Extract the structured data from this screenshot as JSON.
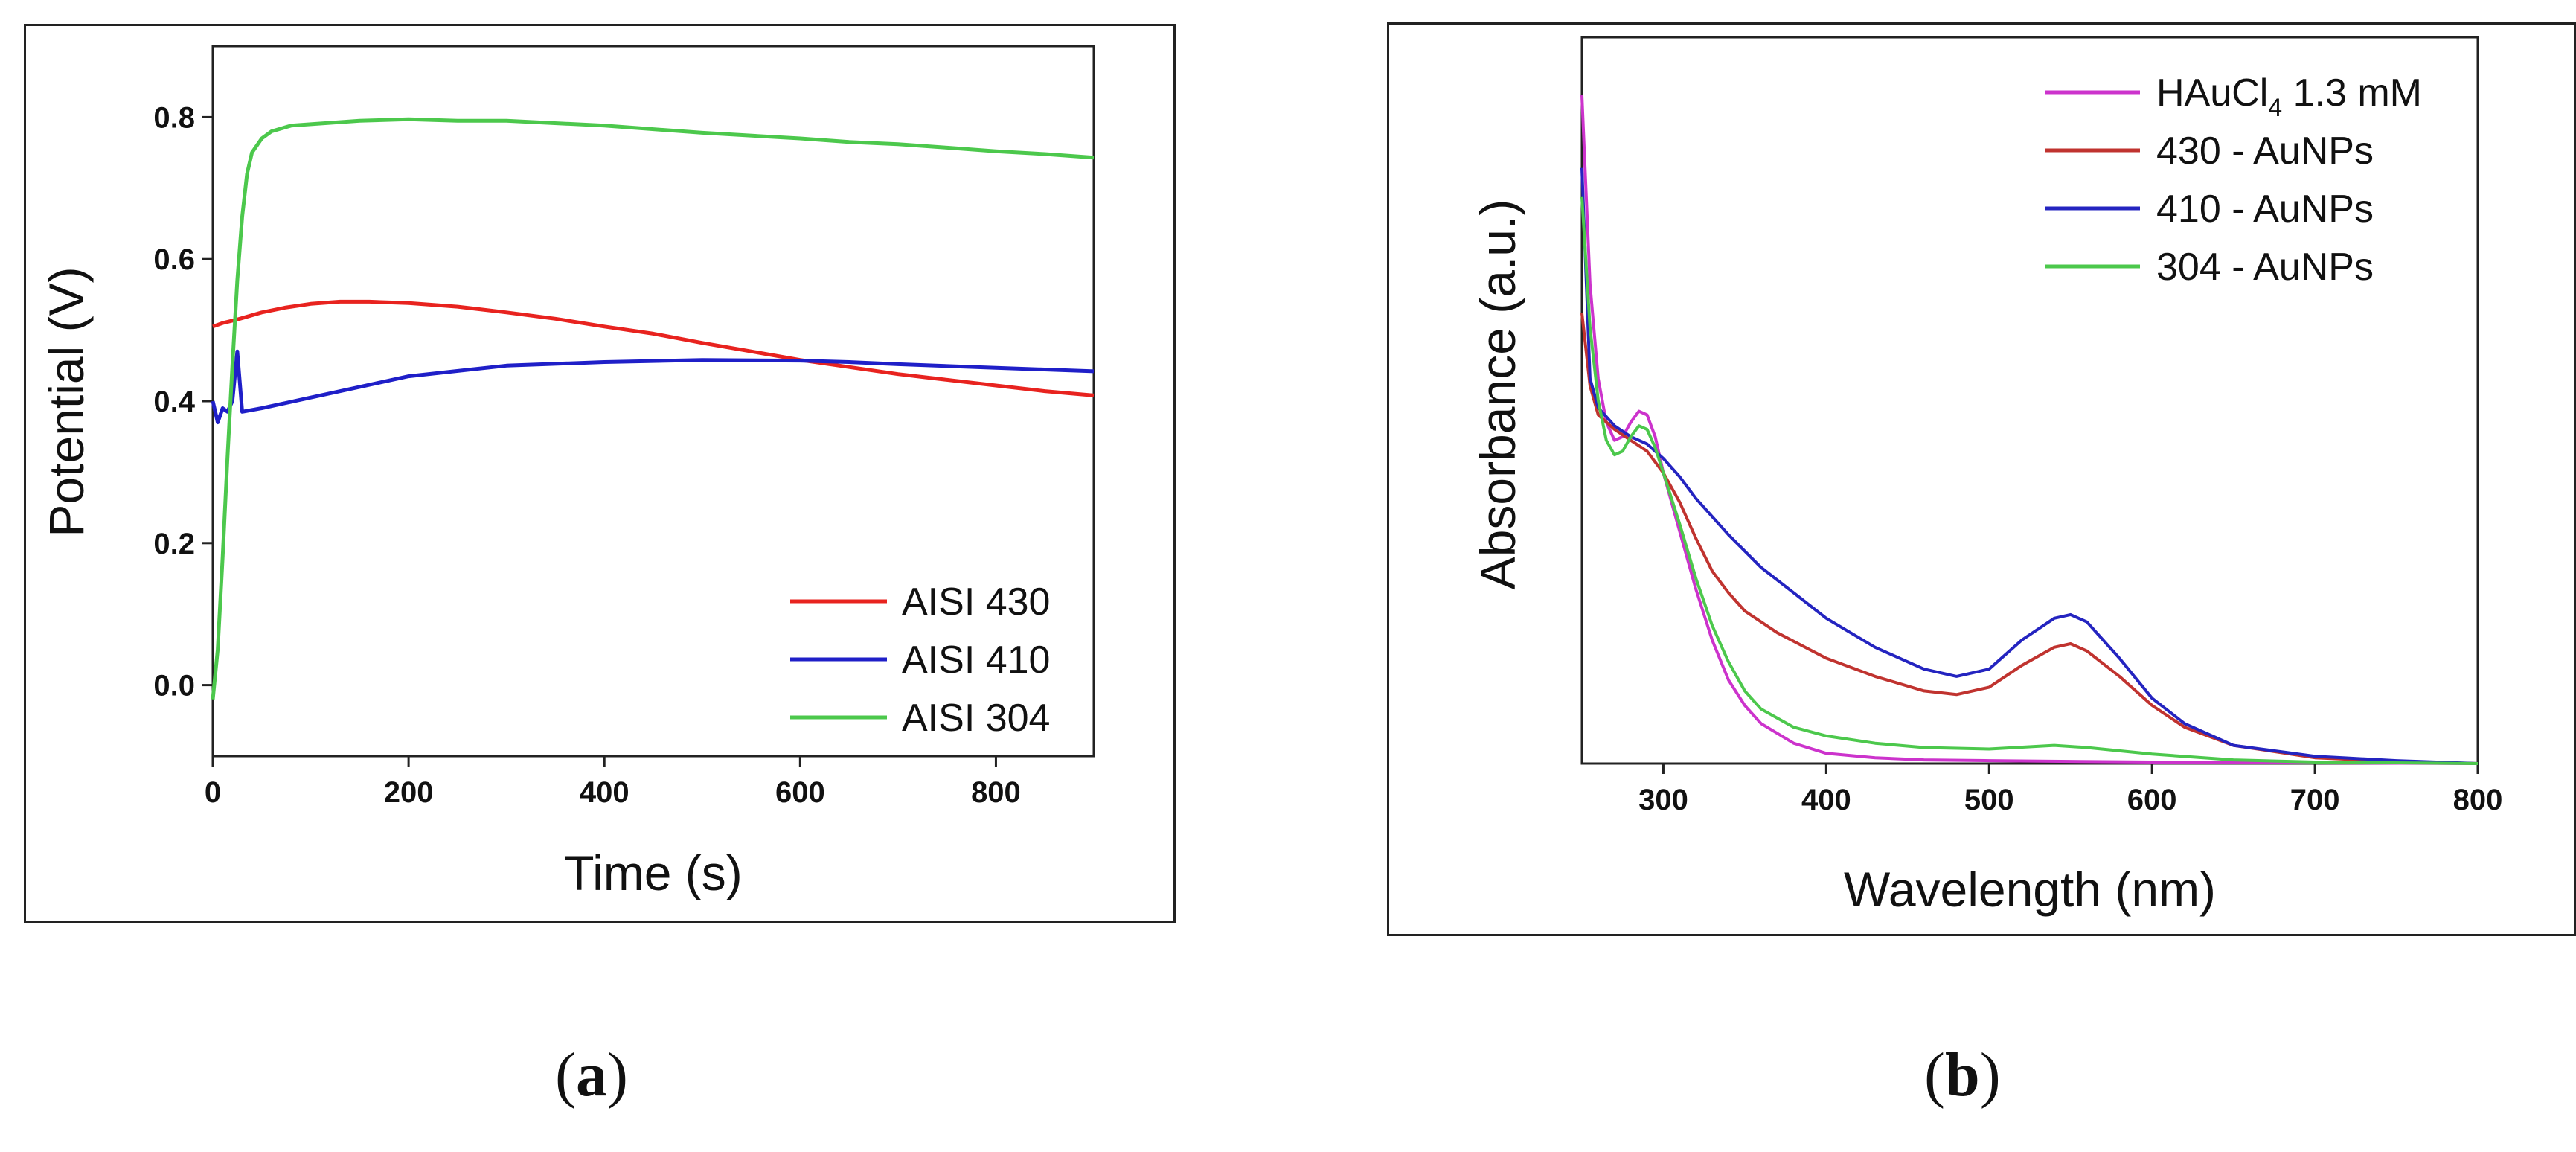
{
  "chart_data": [
    {
      "type": "line",
      "panel_label": "a",
      "xlabel": "Time (s)",
      "ylabel": "Potential (V)",
      "xlim": [
        0,
        900
      ],
      "ylim": [
        -0.1,
        0.9
      ],
      "xticks": [
        0,
        200,
        400,
        600,
        800
      ],
      "xtick_labels": [
        "0",
        "200",
        "400",
        "600",
        "800"
      ],
      "yticks": [
        0.0,
        0.2,
        0.4,
        0.6,
        0.8
      ],
      "ytick_labels": [
        "0.0",
        "0.2",
        "0.4",
        "0.6",
        "0.8"
      ],
      "legend_position": "bottom-right",
      "series": [
        {
          "name": "AISI 430",
          "color": "#e8231f",
          "x": [
            0,
            10,
            25,
            50,
            75,
            100,
            130,
            160,
            200,
            250,
            300,
            350,
            400,
            450,
            500,
            550,
            600,
            650,
            700,
            750,
            800,
            850,
            900
          ],
          "y": [
            0.505,
            0.51,
            0.515,
            0.525,
            0.532,
            0.537,
            0.54,
            0.54,
            0.538,
            0.533,
            0.525,
            0.516,
            0.505,
            0.495,
            0.482,
            0.47,
            0.458,
            0.448,
            0.438,
            0.43,
            0.422,
            0.414,
            0.408
          ]
        },
        {
          "name": "AISI 410",
          "color": "#1f1fc8",
          "x": [
            0,
            5,
            10,
            15,
            20,
            25,
            30,
            50,
            100,
            150,
            200,
            300,
            400,
            500,
            600,
            650,
            700,
            800,
            900
          ],
          "y": [
            0.4,
            0.37,
            0.39,
            0.385,
            0.4,
            0.47,
            0.385,
            0.39,
            0.405,
            0.42,
            0.435,
            0.45,
            0.455,
            0.458,
            0.457,
            0.455,
            0.452,
            0.447,
            0.442
          ]
        },
        {
          "name": "AISI 304",
          "color": "#4cc84c",
          "x": [
            0,
            5,
            10,
            15,
            20,
            25,
            30,
            35,
            40,
            50,
            60,
            80,
            100,
            150,
            200,
            250,
            300,
            400,
            500,
            600,
            650,
            700,
            750,
            800,
            850,
            900
          ],
          "y": [
            -0.02,
            0.05,
            0.18,
            0.32,
            0.45,
            0.57,
            0.66,
            0.72,
            0.75,
            0.77,
            0.78,
            0.788,
            0.79,
            0.795,
            0.797,
            0.795,
            0.795,
            0.788,
            0.778,
            0.77,
            0.765,
            0.762,
            0.757,
            0.752,
            0.748,
            0.743
          ]
        }
      ]
    },
    {
      "type": "line",
      "panel_label": "b",
      "xlabel": "Wavelength (nm)",
      "ylabel": "Absorbance (a.u.)",
      "xlim": [
        250,
        800
      ],
      "ylim": [
        0,
        1
      ],
      "xticks": [
        300,
        400,
        500,
        600,
        700,
        800
      ],
      "xtick_labels": [
        "300",
        "400",
        "500",
        "600",
        "700",
        "800"
      ],
      "yticks": [],
      "legend_position": "top-right",
      "legend_hauCl4_parts": {
        "main": "HAuCl",
        "sub": "4",
        "rest": " 1.3 mM"
      },
      "series": [
        {
          "name": "HAuCl4 1.3 mM",
          "color": "#cc33cc",
          "x": [
            250,
            255,
            260,
            265,
            270,
            275,
            280,
            285,
            290,
            295,
            300,
            310,
            320,
            330,
            340,
            350,
            360,
            380,
            400,
            430,
            460,
            500,
            550,
            600,
            700,
            800
          ],
          "y": [
            0.92,
            0.66,
            0.53,
            0.47,
            0.445,
            0.45,
            0.47,
            0.485,
            0.48,
            0.45,
            0.4,
            0.32,
            0.24,
            0.17,
            0.115,
            0.08,
            0.055,
            0.028,
            0.014,
            0.008,
            0.005,
            0.004,
            0.003,
            0.002,
            0.001,
            0.0
          ]
        },
        {
          "name": "430 - AuNPs",
          "color": "#c0332f",
          "x": [
            250,
            255,
            260,
            270,
            280,
            290,
            300,
            310,
            320,
            330,
            340,
            350,
            370,
            400,
            430,
            460,
            480,
            500,
            520,
            540,
            550,
            560,
            580,
            600,
            620,
            650,
            700,
            750,
            800
          ],
          "y": [
            0.62,
            0.52,
            0.48,
            0.46,
            0.445,
            0.43,
            0.4,
            0.36,
            0.31,
            0.265,
            0.235,
            0.21,
            0.18,
            0.145,
            0.12,
            0.1,
            0.095,
            0.105,
            0.135,
            0.16,
            0.165,
            0.155,
            0.12,
            0.08,
            0.05,
            0.025,
            0.008,
            0.003,
            0.0
          ]
        },
        {
          "name": "410 - AuNPs",
          "color": "#2424c0",
          "x": [
            250,
            255,
            260,
            270,
            280,
            290,
            300,
            310,
            320,
            340,
            360,
            380,
            400,
            430,
            460,
            480,
            500,
            520,
            540,
            550,
            560,
            580,
            600,
            620,
            650,
            700,
            750,
            800
          ],
          "y": [
            0.82,
            0.53,
            0.49,
            0.465,
            0.45,
            0.44,
            0.42,
            0.395,
            0.365,
            0.315,
            0.27,
            0.235,
            0.2,
            0.16,
            0.13,
            0.12,
            0.13,
            0.17,
            0.2,
            0.205,
            0.195,
            0.145,
            0.09,
            0.055,
            0.025,
            0.01,
            0.004,
            0.0
          ]
        },
        {
          "name": "304 - AuNPs",
          "color": "#4cc84c",
          "x": [
            250,
            255,
            260,
            265,
            270,
            275,
            280,
            285,
            290,
            295,
            300,
            310,
            320,
            330,
            340,
            350,
            360,
            380,
            400,
            430,
            460,
            500,
            540,
            560,
            600,
            650,
            700,
            800
          ],
          "y": [
            0.78,
            0.6,
            0.5,
            0.445,
            0.425,
            0.43,
            0.45,
            0.465,
            0.46,
            0.435,
            0.4,
            0.33,
            0.255,
            0.19,
            0.14,
            0.1,
            0.075,
            0.05,
            0.038,
            0.028,
            0.022,
            0.02,
            0.025,
            0.022,
            0.013,
            0.005,
            0.002,
            0.0
          ]
        }
      ]
    }
  ],
  "captions": {
    "a": {
      "open": "(",
      "letter": "a",
      "close": ")"
    },
    "b": {
      "open": "(",
      "letter": "b",
      "close": ")"
    }
  }
}
